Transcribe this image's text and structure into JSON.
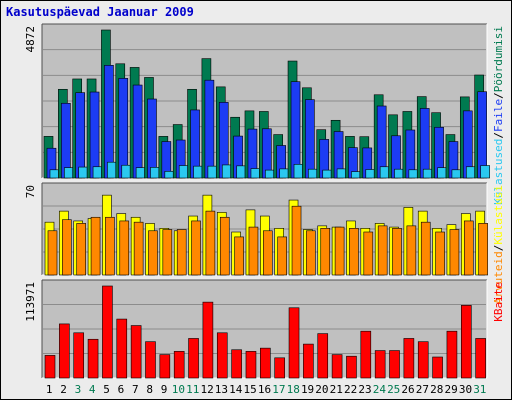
{
  "title": "Kasutuspäevad Jaanuar 2009",
  "colors": {
    "plot_bg": "#c0c0c0",
    "grid": "#8c8c8c",
    "visits": "#007a50",
    "files": "#1c3cf4",
    "pages": "#2ac8f0",
    "hits": "#ffff00",
    "sites": "#ff8800",
    "kbytes": "#ff0000",
    "day_default": "#000000",
    "day_weekend": "#007a50"
  },
  "chart_data": [
    {
      "type": "bar",
      "panel": "top",
      "ymax_label": "4872",
      "ylim": [
        0,
        4872
      ],
      "legend": {
        "position": "right",
        "separator": "/",
        "entries": [
          "Külastused",
          "Faile",
          "Pöördumisi"
        ]
      },
      "categories": [
        "1",
        "2",
        "3",
        "4",
        "5",
        "6",
        "7",
        "8",
        "9",
        "10",
        "11",
        "12",
        "13",
        "14",
        "15",
        "16",
        "17",
        "18",
        "19",
        "20",
        "21",
        "22",
        "23",
        "24",
        "25",
        "26",
        "27",
        "28",
        "29",
        "30",
        "31"
      ],
      "weekend_days": [
        "3",
        "4",
        "10",
        "11",
        "17",
        "18",
        "24",
        "25",
        "31"
      ],
      "series": [
        {
          "name": "Pöördumisi",
          "color_key": "visits",
          "values": [
            1370,
            2920,
            3260,
            3260,
            4872,
            3760,
            3640,
            3310,
            1370,
            1760,
            2920,
            3930,
            3000,
            2000,
            2210,
            2190,
            1430,
            3850,
            2970,
            1590,
            1900,
            1370,
            1360,
            2740,
            2080,
            2190,
            2680,
            2150,
            1430,
            2670,
            3390
          ]
        },
        {
          "name": "Faile",
          "color_key": "files",
          "values": [
            980,
            2460,
            2810,
            2830,
            3710,
            3280,
            3060,
            2600,
            1200,
            1250,
            2240,
            3220,
            2490,
            1380,
            1610,
            1620,
            1070,
            3170,
            2580,
            1270,
            1530,
            1000,
            990,
            2370,
            1390,
            1580,
            2290,
            1670,
            1200,
            2210,
            2840
          ]
        },
        {
          "name": "Külastused",
          "color_key": "pages",
          "values": [
            270,
            340,
            360,
            370,
            520,
            420,
            340,
            350,
            220,
            410,
            390,
            390,
            430,
            400,
            310,
            260,
            300,
            450,
            290,
            260,
            300,
            210,
            280,
            370,
            290,
            270,
            290,
            340,
            270,
            370,
            410
          ]
        }
      ]
    },
    {
      "type": "bar",
      "panel": "middle",
      "ymax_label": "70",
      "ylim": [
        0,
        70
      ],
      "legend": {
        "position": "right",
        "separator": "/",
        "entries": [
          "Arvuteid",
          "Külastusi"
        ]
      },
      "categories": [
        "1",
        "2",
        "3",
        "4",
        "5",
        "6",
        "7",
        "8",
        "9",
        "10",
        "11",
        "12",
        "13",
        "14",
        "15",
        "16",
        "17",
        "18",
        "19",
        "20",
        "21",
        "22",
        "23",
        "24",
        "25",
        "26",
        "27",
        "28",
        "29",
        "30",
        "31"
      ],
      "series": [
        {
          "name": "Külastusi",
          "color_key": "hits",
          "values": [
            43,
            52,
            44,
            46,
            65,
            50,
            47,
            42,
            38,
            36,
            48,
            65,
            51,
            35,
            53,
            48,
            38,
            61,
            37,
            40,
            39,
            44,
            38,
            42,
            39,
            55,
            52,
            38,
            41,
            50,
            52
          ]
        },
        {
          "name": "Arvuteid",
          "color_key": "sites",
          "values": [
            36,
            45,
            42,
            47,
            47,
            44,
            43,
            36,
            37,
            37,
            44,
            52,
            47,
            31,
            39,
            36,
            31,
            56,
            36,
            38,
            39,
            38,
            35,
            40,
            38,
            40,
            43,
            35,
            37,
            44,
            42
          ]
        }
      ]
    },
    {
      "type": "bar",
      "panel": "bottom",
      "ymax_label": "113971",
      "ylim": [
        0,
        113971
      ],
      "legend": {
        "position": "right",
        "entries": [
          "KBaite"
        ]
      },
      "categories": [
        "1",
        "2",
        "3",
        "4",
        "5",
        "6",
        "7",
        "8",
        "9",
        "10",
        "11",
        "12",
        "13",
        "14",
        "15",
        "16",
        "17",
        "18",
        "19",
        "20",
        "21",
        "22",
        "23",
        "24",
        "25",
        "26",
        "27",
        "28",
        "29",
        "30",
        "31"
      ],
      "series": [
        {
          "name": "KBaite",
          "color_key": "kbytes",
          "values": [
            28000,
            67000,
            56000,
            48000,
            113971,
            73000,
            65000,
            45000,
            29000,
            33000,
            49000,
            94000,
            56000,
            35000,
            33000,
            37000,
            25000,
            87000,
            42000,
            55000,
            29000,
            27000,
            58000,
            34000,
            34000,
            49000,
            45000,
            26000,
            58000,
            90000,
            49000
          ]
        }
      ]
    }
  ]
}
